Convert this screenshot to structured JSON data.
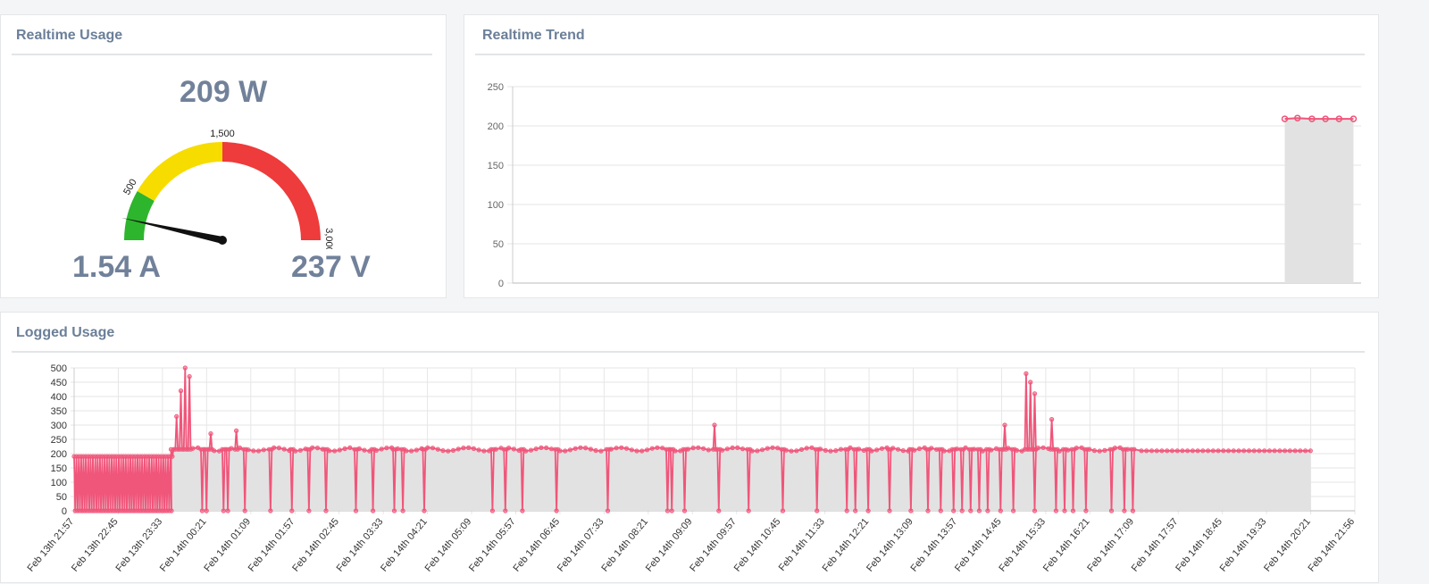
{
  "panels": {
    "realtime_usage": {
      "title": "Realtime Usage",
      "power": "209 W",
      "current": "1.54 A",
      "voltage": "237 V",
      "gauge": {
        "min": 0,
        "max": 3000,
        "value": 209,
        "bands": [
          {
            "from": 0,
            "to": 500,
            "color": "#2db52d"
          },
          {
            "from": 500,
            "to": 1500,
            "color": "#f7dc00"
          },
          {
            "from": 1500,
            "to": 3000,
            "color": "#ee3b3b"
          }
        ],
        "tick_labels": [
          {
            "value": 500,
            "label": "500"
          },
          {
            "value": 1500,
            "label": "1,500"
          },
          {
            "value": 3000,
            "label": "3,000"
          }
        ]
      }
    },
    "realtime_trend": {
      "title": "Realtime Trend"
    },
    "logged_usage": {
      "title": "Logged Usage"
    }
  },
  "colors": {
    "series": "#f0557a",
    "fill": "#e2e2e2",
    "grid": "#e6e6e6",
    "title": "#6b7f99",
    "value_text": "#71819a"
  },
  "chart_data": [
    {
      "type": "area",
      "ylim": [
        0,
        250
      ],
      "yticks": [
        "0",
        "50",
        "100",
        "150",
        "200",
        "250"
      ],
      "xlim": [
        0,
        100
      ],
      "x": [
        91,
        92.5,
        94.2,
        95.8,
        97.4,
        99.1
      ],
      "values": [
        209,
        210,
        209,
        209,
        209,
        209
      ]
    },
    {
      "type": "area",
      "ylim": [
        0,
        500
      ],
      "yticks": [
        "0",
        "50",
        "100",
        "150",
        "200",
        "250",
        "300",
        "350",
        "400",
        "450",
        "500"
      ],
      "categories": [
        "Feb 13th 21:57",
        "Feb 13th 22:45",
        "Feb 13th 23:33",
        "Feb 14th 00:21",
        "Feb 14th 01:09",
        "Feb 14th 01:57",
        "Feb 14th 02:45",
        "Feb 14th 03:33",
        "Feb 14th 04:21",
        "Feb 14th 05:09",
        "Feb 14th 05:57",
        "Feb 14th 06:45",
        "Feb 14th 07:33",
        "Feb 14th 08:21",
        "Feb 14th 09:09",
        "Feb 14th 09:57",
        "Feb 14th 10:45",
        "Feb 14th 11:33",
        "Feb 14th 12:21",
        "Feb 14th 13:09",
        "Feb 14th 13:57",
        "Feb 14th 14:45",
        "Feb 14th 15:33",
        "Feb 14th 16:21",
        "Feb 14th 17:09",
        "Feb 14th 17:57",
        "Feb 14th 18:45",
        "Feb 14th 19:33",
        "Feb 14th 20:21",
        "Feb 14th 21:56"
      ],
      "xlim": [
        0,
        30
      ],
      "spikes": [
        {
          "x": 2.3,
          "value": 190
        },
        {
          "x": 2.4,
          "value": 330
        },
        {
          "x": 2.5,
          "value": 420
        },
        {
          "x": 2.6,
          "value": 500
        },
        {
          "x": 2.7,
          "value": 470
        },
        {
          "x": 3.2,
          "value": 270
        },
        {
          "x": 3.8,
          "value": 280
        },
        {
          "x": 15.0,
          "value": 300
        },
        {
          "x": 21.8,
          "value": 300
        },
        {
          "x": 22.3,
          "value": 480
        },
        {
          "x": 22.4,
          "value": 450
        },
        {
          "x": 22.5,
          "value": 410
        },
        {
          "x": 22.9,
          "value": 320
        }
      ],
      "dips": [
        3.0,
        3.1,
        3.5,
        3.6,
        4.0,
        4.6,
        5.1,
        5.5,
        5.9,
        6.6,
        7.0,
        7.5,
        7.7,
        8.2,
        9.8,
        10.1,
        10.5,
        11.3,
        12.5,
        13.9,
        14.0,
        14.3,
        15.1,
        15.8,
        16.6,
        17.4,
        18.1,
        18.3,
        18.6,
        19.1,
        19.6,
        20.0,
        20.3,
        20.6,
        20.8,
        21.0,
        21.2,
        21.4,
        21.7,
        22.0,
        22.5,
        23.0,
        23.2,
        23.4,
        23.7,
        24.3,
        24.6,
        24.8
      ],
      "baseline": 215,
      "tail_value": 210,
      "tail_start": 25.0,
      "noisy_region": [
        0,
        2.3
      ],
      "noise_high": 190
    }
  ]
}
